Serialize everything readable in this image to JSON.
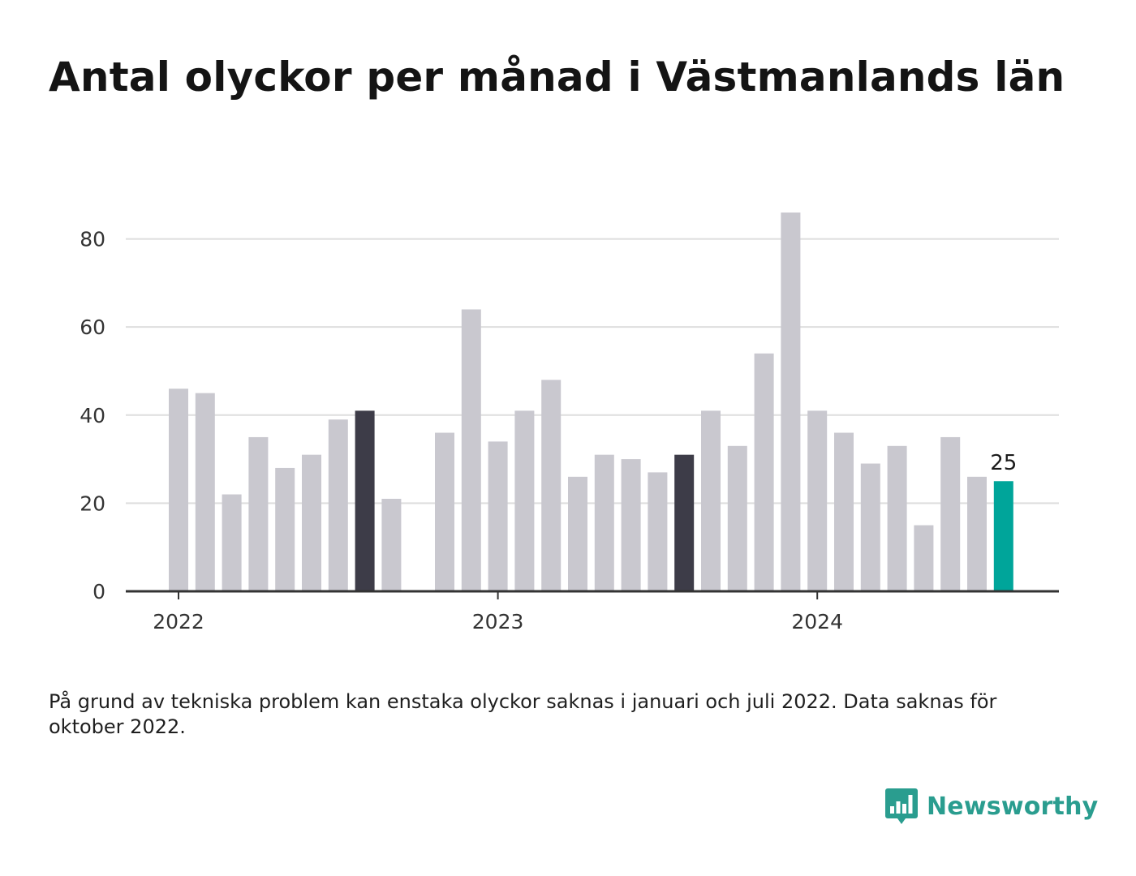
{
  "header": {
    "title": "Antal olyckor per månad i Västmanlands län"
  },
  "footer": {
    "note": "På grund av tekniska problem kan enstaka olyckor saknas i januari och juli 2022. Data saknas för oktober 2022.",
    "brand": "Newsworthy",
    "brand_icon": "bar-chart-badge-icon"
  },
  "colors": {
    "default_bar": "#c9c8cf",
    "highlight_bar": "#3d3c48",
    "latest_bar": "#00a59a",
    "gridline": "#dedede",
    "axis": "#333333",
    "brand": "#2a9d8f"
  },
  "chart_data": {
    "type": "bar",
    "title": "Antal olyckor per månad i Västmanlands län",
    "xlabel": "",
    "ylabel": "",
    "ylim": [
      0,
      86
    ],
    "yticks": [
      "0",
      "20",
      "40",
      "60",
      "80"
    ],
    "year_labels": [
      "2022",
      "2023",
      "2024"
    ],
    "grid": true,
    "categories": [
      "2022-01",
      "2022-02",
      "2022-03",
      "2022-04",
      "2022-05",
      "2022-06",
      "2022-07",
      "2022-08",
      "2022-09",
      "2022-10",
      "2022-11",
      "2022-12",
      "2023-01",
      "2023-02",
      "2023-03",
      "2023-04",
      "2023-05",
      "2023-06",
      "2023-07",
      "2023-08",
      "2023-09",
      "2023-10",
      "2023-11",
      "2023-12",
      "2024-01",
      "2024-02",
      "2024-03",
      "2024-04",
      "2024-05",
      "2024-06",
      "2024-07",
      "2024-08"
    ],
    "values": [
      46,
      45,
      22,
      35,
      28,
      31,
      39,
      41,
      21,
      null,
      36,
      64,
      34,
      41,
      48,
      26,
      31,
      30,
      27,
      31,
      41,
      33,
      54,
      86,
      41,
      36,
      29,
      33,
      15,
      35,
      26,
      25
    ],
    "highlighted": [
      "2022-08",
      "2023-08"
    ],
    "latest": "2024-08",
    "data_labels": [
      {
        "category": "2024-08",
        "text": "25"
      }
    ]
  }
}
